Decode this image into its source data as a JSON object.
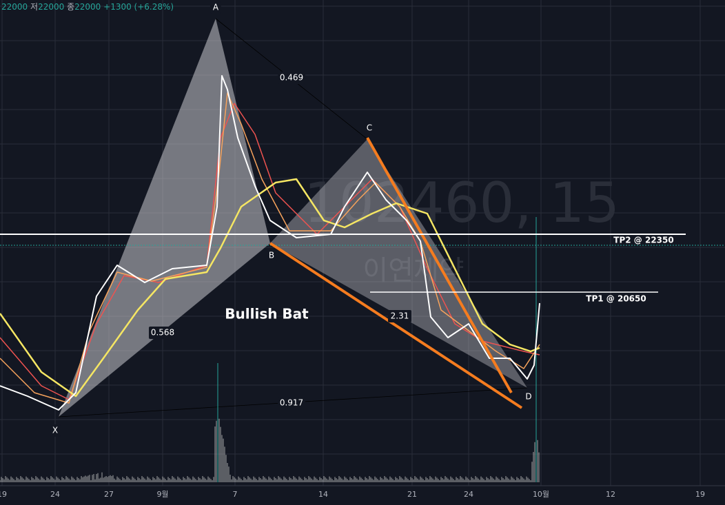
{
  "header": {
    "last": "22000",
    "low_label": "저",
    "low": "22000",
    "close_label": "종",
    "close": "22000",
    "change": "+1300 (+6.28%)"
  },
  "pattern": {
    "name": "Bullish Bat",
    "points": {
      "x": "X",
      "a": "A",
      "b": "B",
      "c": "C",
      "d": "D"
    },
    "ratios": {
      "ab": "0.469",
      "xb": "0.568",
      "xd": "0.917",
      "bd": "2.31"
    }
  },
  "targets": {
    "tp2": "TP2 @ 22350",
    "tp1": "TP1 @ 20650"
  },
  "watermark": {
    "symbol": "102460, 15",
    "name": "이연제약"
  },
  "x_axis": {
    "labels": [
      "19",
      "24",
      "27",
      "9월",
      "7",
      "14",
      "21",
      "24",
      "10월",
      "12",
      "19"
    ]
  }
}
